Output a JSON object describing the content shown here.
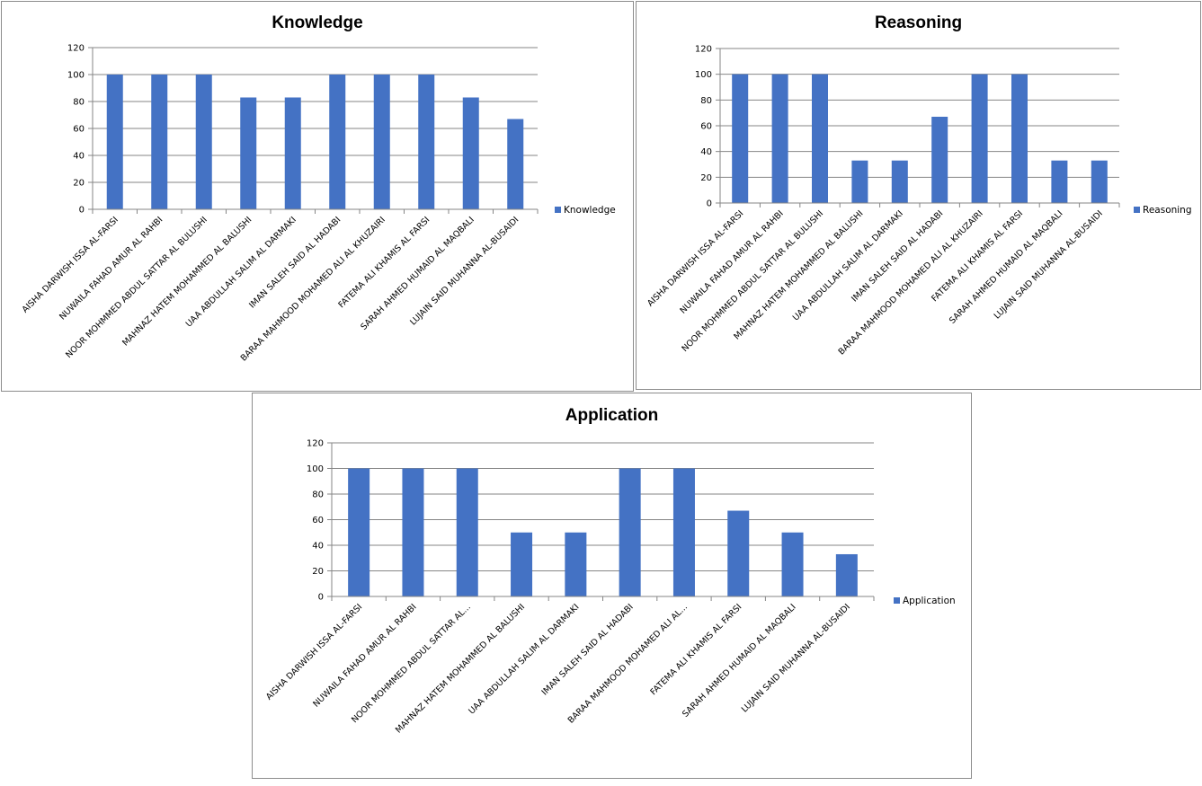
{
  "chart_data": [
    {
      "type": "bar",
      "title": "Knowledge",
      "xlabel": "",
      "ylabel": "",
      "ylim": [
        0,
        120
      ],
      "yticks": [
        0,
        20,
        40,
        60,
        80,
        100,
        120
      ],
      "grid": true,
      "legend": "right",
      "color": "#4472c4",
      "categories": [
        "AISHA DARWISH ISSA AL-FARSI",
        "NUWAILA FAHAD AMUR AL RAHBI",
        "NOOR MOHMMED  ABDUL SATTAR  AL BULUSHI",
        "MAHNAZ HATEM MOHAMMED  AL BALUSHI",
        "UAA ABDULLAH SALIM AL DARMAKI",
        "IMAN SALEH SAID AL HADABI",
        "BARAA MAHMOOD MOHAMED ALI AL KHUZAIRI",
        "FATEMA ALI KHAMIS AL FARSI",
        "SARAH AHMED HUMAID  AL MAQBALI",
        "LUJAIN SAID MUHANNA  AL-BUSAIDI"
      ],
      "series": [
        {
          "name": "Knowledge",
          "values": [
            100,
            100,
            100,
            83,
            83,
            100,
            100,
            100,
            83,
            67
          ]
        }
      ]
    },
    {
      "type": "bar",
      "title": "Reasoning",
      "xlabel": "",
      "ylabel": "",
      "ylim": [
        0,
        120
      ],
      "yticks": [
        0,
        20,
        40,
        60,
        80,
        100,
        120
      ],
      "grid": true,
      "legend": "right",
      "color": "#4472c4",
      "categories": [
        "AISHA DARWISH ISSA AL-FARSI",
        "NUWAILA FAHAD AMUR AL RAHBI",
        "NOOR MOHMMED  ABDUL SATTAR  AL BULUSHI",
        "MAHNAZ HATEM MOHAMMED  AL BALUSHI",
        "UAA ABDULLAH SALIM AL DARMAKI",
        "IMAN SALEH SAID AL HADABI",
        "BARAA MAHMOOD MOHAMED ALI AL KHUZAIRI",
        "FATEMA ALI KHAMIS AL FARSI",
        "SARAH AHMED HUMAID  AL MAQBALI",
        "LUJAIN SAID MUHANNA  AL-BUSAIDI"
      ],
      "series": [
        {
          "name": "Reasoning",
          "values": [
            100,
            100,
            100,
            33,
            33,
            67,
            100,
            100,
            33,
            33
          ]
        }
      ]
    },
    {
      "type": "bar",
      "title": "Application",
      "xlabel": "",
      "ylabel": "",
      "ylim": [
        0,
        120
      ],
      "yticks": [
        0,
        20,
        40,
        60,
        80,
        100,
        120
      ],
      "grid": true,
      "legend": "right",
      "color": "#4472c4",
      "categories": [
        "AISHA DARWISH ISSA AL-FARSI",
        "NUWAILA FAHAD AMUR AL RAHBI",
        "NOOR MOHMMED  ABDUL SATTAR  AL...",
        "MAHNAZ HATEM MOHAMMED  AL BALUSHI",
        "UAA ABDULLAH SALIM AL DARMAKI",
        "IMAN SALEH SAID AL HADABI",
        "BARAA MAHMOOD MOHAMED ALI AL...",
        "FATEMA ALI KHAMIS AL FARSI",
        "SARAH AHMED HUMAID  AL MAQBALI",
        "LUJAIN SAID MUHANNA  AL-BUSAIDI"
      ],
      "series": [
        {
          "name": "Application",
          "values": [
            100,
            100,
            100,
            50,
            50,
            100,
            100,
            67,
            50,
            33
          ]
        }
      ]
    }
  ]
}
